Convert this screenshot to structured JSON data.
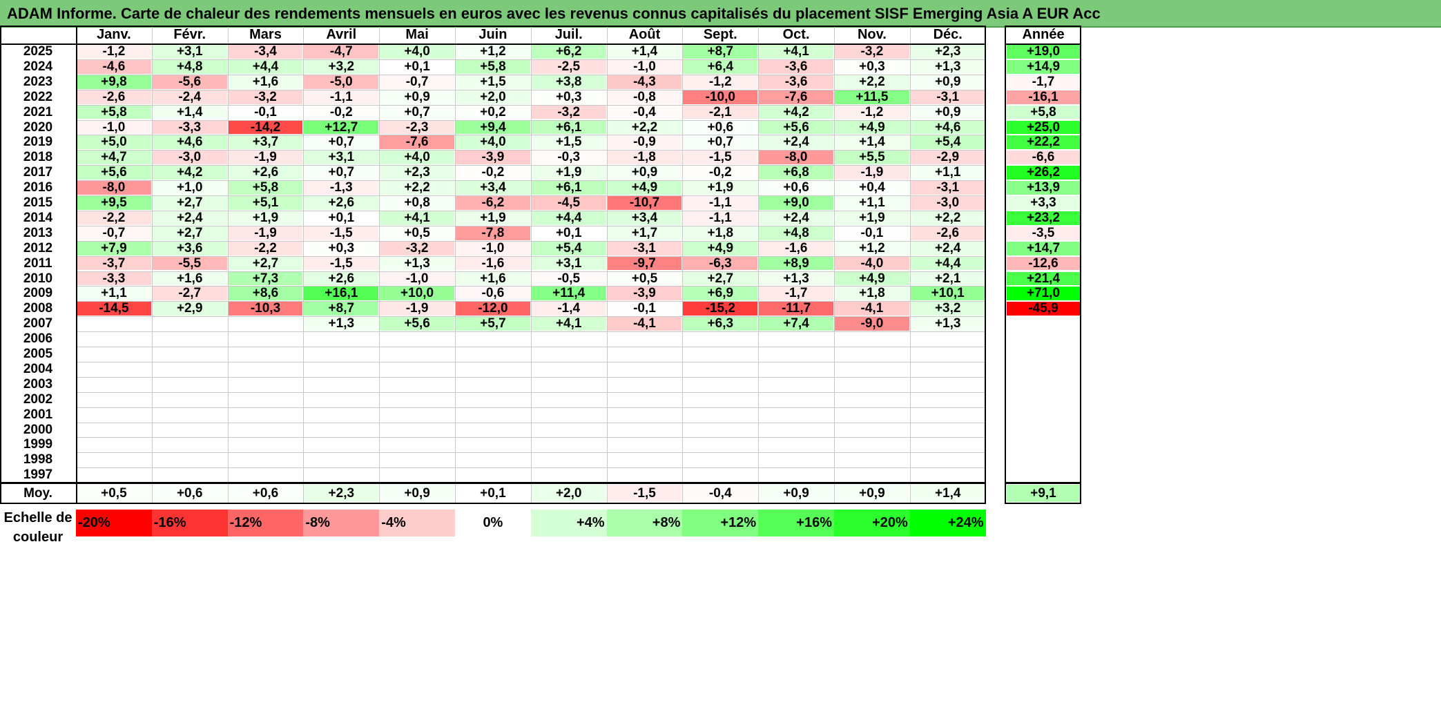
{
  "title": "ADAM Informe. Carte de chaleur des rendements mensuels en euros avec les revenus connus capitalisés du placement SISF Emerging Asia A EUR Acc",
  "colors": {
    "title_bar": "#7dc97a",
    "positive": "#00ff00",
    "negative": "#ff0000",
    "neutral": "#ffffff"
  },
  "chart_data": {
    "type": "heatmap",
    "title": "ADAM Informe. Carte de chaleur des rendements mensuels en euros avec les revenus connus capitalisés du placement SISF Emerging Asia A EUR Acc",
    "months": [
      "Janv.",
      "Févr.",
      "Mars",
      "Avril",
      "Mai",
      "Juin",
      "Juil.",
      "Août",
      "Sept.",
      "Oct.",
      "Nov.",
      "Déc."
    ],
    "annual_header": "Année",
    "rows": [
      {
        "year": "2025",
        "values": [
          "-1,2",
          "+3,1",
          "-3,4",
          "-4,7",
          "+4,0",
          "+1,2",
          "+6,2",
          "+1,4",
          "+8,7",
          "+4,1",
          "-3,2",
          "+2,3"
        ],
        "annual": "+19,0"
      },
      {
        "year": "2024",
        "values": [
          "-4,6",
          "+4,8",
          "+4,4",
          "+3,2",
          "+0,1",
          "+5,8",
          "-2,5",
          "-1,0",
          "+6,4",
          "-3,6",
          "+0,3",
          "+1,3"
        ],
        "annual": "+14,9"
      },
      {
        "year": "2023",
        "values": [
          "+9,8",
          "-5,6",
          "+1,6",
          "-5,0",
          "-0,7",
          "+1,5",
          "+3,8",
          "-4,3",
          "-1,2",
          "-3,6",
          "+2,2",
          "+0,9"
        ],
        "annual": "-1,7"
      },
      {
        "year": "2022",
        "values": [
          "-2,6",
          "-2,4",
          "-3,2",
          "-1,1",
          "+0,9",
          "+2,0",
          "+0,3",
          "-0,8",
          "-10,0",
          "-7,6",
          "+11,5",
          "-3,1"
        ],
        "annual": "-16,1"
      },
      {
        "year": "2021",
        "values": [
          "+5,8",
          "+1,4",
          "-0,1",
          "-0,2",
          "+0,7",
          "+0,2",
          "-3,2",
          "-0,4",
          "-2,1",
          "+4,2",
          "-1,2",
          "+0,9"
        ],
        "annual": "+5,8"
      },
      {
        "year": "2020",
        "values": [
          "-1,0",
          "-3,3",
          "-14,2",
          "+12,7",
          "-2,3",
          "+9,4",
          "+6,1",
          "+2,2",
          "+0,6",
          "+5,6",
          "+4,9",
          "+4,6"
        ],
        "annual": "+25,0"
      },
      {
        "year": "2019",
        "values": [
          "+5,0",
          "+4,6",
          "+3,7",
          "+0,7",
          "-7,6",
          "+4,0",
          "+1,5",
          "-0,9",
          "+0,7",
          "+2,4",
          "+1,4",
          "+5,4"
        ],
        "annual": "+22,2"
      },
      {
        "year": "2018",
        "values": [
          "+4,7",
          "-3,0",
          "-1,9",
          "+3,1",
          "+4,0",
          "-3,9",
          "-0,3",
          "-1,8",
          "-1,5",
          "-8,0",
          "+5,5",
          "-2,9"
        ],
        "annual": "-6,6"
      },
      {
        "year": "2017",
        "values": [
          "+5,6",
          "+4,2",
          "+2,6",
          "+0,7",
          "+2,3",
          "-0,2",
          "+1,9",
          "+0,9",
          "-0,2",
          "+6,8",
          "-1,9",
          "+1,1"
        ],
        "annual": "+26,2"
      },
      {
        "year": "2016",
        "values": [
          "-8,0",
          "+1,0",
          "+5,8",
          "-1,3",
          "+2,2",
          "+3,4",
          "+6,1",
          "+4,9",
          "+1,9",
          "+0,6",
          "+0,4",
          "-3,1"
        ],
        "annual": "+13,9"
      },
      {
        "year": "2015",
        "values": [
          "+9,5",
          "+2,7",
          "+5,1",
          "+2,6",
          "+0,8",
          "-6,2",
          "-4,5",
          "-10,7",
          "-1,1",
          "+9,0",
          "+1,1",
          "-3,0"
        ],
        "annual": "+3,3"
      },
      {
        "year": "2014",
        "values": [
          "-2,2",
          "+2,4",
          "+1,9",
          "+0,1",
          "+4,1",
          "+1,9",
          "+4,4",
          "+3,4",
          "-1,1",
          "+2,4",
          "+1,9",
          "+2,2"
        ],
        "annual": "+23,2"
      },
      {
        "year": "2013",
        "values": [
          "-0,7",
          "+2,7",
          "-1,9",
          "-1,5",
          "+0,5",
          "-7,8",
          "+0,1",
          "+1,7",
          "+1,8",
          "+4,8",
          "-0,1",
          "-2,6"
        ],
        "annual": "-3,5"
      },
      {
        "year": "2012",
        "values": [
          "+7,9",
          "+3,6",
          "-2,2",
          "+0,3",
          "-3,2",
          "-1,0",
          "+5,4",
          "-3,1",
          "+4,9",
          "-1,6",
          "+1,2",
          "+2,4"
        ],
        "annual": "+14,7"
      },
      {
        "year": "2011",
        "values": [
          "-3,7",
          "-5,5",
          "+2,7",
          "-1,5",
          "+1,3",
          "-1,6",
          "+3,1",
          "-9,7",
          "-6,3",
          "+8,9",
          "-4,0",
          "+4,4"
        ],
        "annual": "-12,6"
      },
      {
        "year": "2010",
        "values": [
          "-3,3",
          "+1,6",
          "+7,3",
          "+2,6",
          "-1,0",
          "+1,6",
          "-0,5",
          "+0,5",
          "+2,7",
          "+1,3",
          "+4,9",
          "+2,1"
        ],
        "annual": "+21,4"
      },
      {
        "year": "2009",
        "values": [
          "+1,1",
          "-2,7",
          "+8,6",
          "+16,1",
          "+10,0",
          "-0,6",
          "+11,4",
          "-3,9",
          "+6,9",
          "-1,7",
          "+1,8",
          "+10,1"
        ],
        "annual": "+71,0"
      },
      {
        "year": "2008",
        "values": [
          "-14,5",
          "+2,9",
          "-10,3",
          "+8,7",
          "-1,9",
          "-12,0",
          "-1,4",
          "-0,1",
          "-15,2",
          "-11,7",
          "-4,1",
          "+3,2"
        ],
        "annual": "-45,9"
      },
      {
        "year": "2007",
        "values": [
          "",
          "",
          "",
          "+1,3",
          "+5,6",
          "+5,7",
          "+4,1",
          "-4,1",
          "+6,3",
          "+7,4",
          "-9,0",
          "+1,3"
        ],
        "annual": ""
      },
      {
        "year": "2006",
        "values": [
          "",
          "",
          "",
          "",
          "",
          "",
          "",
          "",
          "",
          "",
          "",
          ""
        ],
        "annual": ""
      },
      {
        "year": "2005",
        "values": [
          "",
          "",
          "",
          "",
          "",
          "",
          "",
          "",
          "",
          "",
          "",
          ""
        ],
        "annual": ""
      },
      {
        "year": "2004",
        "values": [
          "",
          "",
          "",
          "",
          "",
          "",
          "",
          "",
          "",
          "",
          "",
          ""
        ],
        "annual": ""
      },
      {
        "year": "2003",
        "values": [
          "",
          "",
          "",
          "",
          "",
          "",
          "",
          "",
          "",
          "",
          "",
          ""
        ],
        "annual": ""
      },
      {
        "year": "2002",
        "values": [
          "",
          "",
          "",
          "",
          "",
          "",
          "",
          "",
          "",
          "",
          "",
          ""
        ],
        "annual": ""
      },
      {
        "year": "2001",
        "values": [
          "",
          "",
          "",
          "",
          "",
          "",
          "",
          "",
          "",
          "",
          "",
          ""
        ],
        "annual": ""
      },
      {
        "year": "2000",
        "values": [
          "",
          "",
          "",
          "",
          "",
          "",
          "",
          "",
          "",
          "",
          "",
          ""
        ],
        "annual": ""
      },
      {
        "year": "1999",
        "values": [
          "",
          "",
          "",
          "",
          "",
          "",
          "",
          "",
          "",
          "",
          "",
          ""
        ],
        "annual": ""
      },
      {
        "year": "1998",
        "values": [
          "",
          "",
          "",
          "",
          "",
          "",
          "",
          "",
          "",
          "",
          "",
          ""
        ],
        "annual": ""
      },
      {
        "year": "1997",
        "values": [
          "",
          "",
          "",
          "",
          "",
          "",
          "",
          "",
          "",
          "",
          "",
          ""
        ],
        "annual": ""
      }
    ],
    "average": {
      "label": "Moy.",
      "values": [
        "+0,5",
        "+0,6",
        "+0,6",
        "+2,3",
        "+0,9",
        "+0,1",
        "+2,0",
        "-1,5",
        "-0,4",
        "+0,9",
        "+0,9",
        "+1,4"
      ],
      "annual": "+9,1"
    },
    "legend": {
      "title": "Echelle de couleur",
      "steps": [
        "-20%",
        "-16%",
        "-12%",
        "-8%",
        "-4%",
        "0%",
        "+4%",
        "+8%",
        "+12%",
        "+16%",
        "+20%",
        "+24%"
      ]
    }
  }
}
